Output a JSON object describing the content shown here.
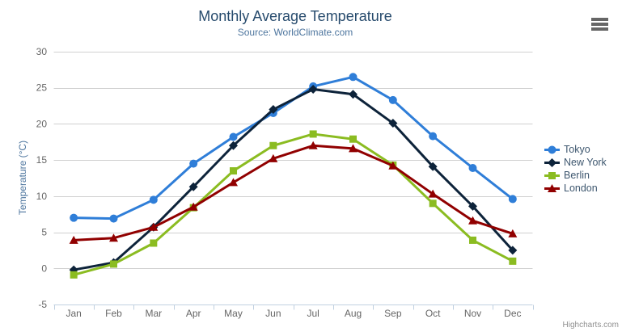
{
  "chart_data": {
    "type": "line",
    "title": "Monthly Average Temperature",
    "subtitle": "Source: WorldClimate.com",
    "xlabel": "",
    "ylabel": "Temperature (°C)",
    "categories": [
      "Jan",
      "Feb",
      "Mar",
      "Apr",
      "May",
      "Jun",
      "Jul",
      "Aug",
      "Sep",
      "Oct",
      "Nov",
      "Dec"
    ],
    "series": [
      {
        "name": "Tokyo",
        "color": "#2f7ed8",
        "marker": "circle",
        "values": [
          7.0,
          6.9,
          9.5,
          14.5,
          18.2,
          21.5,
          25.2,
          26.5,
          23.3,
          18.3,
          13.9,
          9.6
        ]
      },
      {
        "name": "New York",
        "color": "#0d233a",
        "marker": "diamond",
        "values": [
          -0.2,
          0.8,
          5.7,
          11.3,
          17.0,
          22.0,
          24.8,
          24.1,
          20.1,
          14.1,
          8.6,
          2.5
        ]
      },
      {
        "name": "Berlin",
        "color": "#8bbc21",
        "marker": "square",
        "values": [
          -0.9,
          0.6,
          3.5,
          8.4,
          13.5,
          17.0,
          18.6,
          17.9,
          14.3,
          9.0,
          3.9,
          1.0
        ]
      },
      {
        "name": "London",
        "color": "#910000",
        "marker": "triangle",
        "values": [
          3.9,
          4.2,
          5.7,
          8.5,
          11.9,
          15.2,
          17.0,
          16.6,
          14.2,
          10.3,
          6.6,
          4.8
        ]
      }
    ],
    "ylim": [
      -5,
      30
    ],
    "yticks": [
      -5,
      0,
      5,
      10,
      15,
      20,
      25,
      30
    ],
    "grid": true,
    "legend_position": "right"
  },
  "colors": {
    "title": "#274b6d",
    "subtitle": "#4d759e",
    "axis_title": "#4d759e",
    "axis_labels": "#666666",
    "grid_line": "#d0d0d0",
    "axis_line": "#c0d0e0",
    "legend_text": "#3e576f",
    "credits": "#909090",
    "menu_icon": "#666666"
  },
  "credits": {
    "label": "Highcharts.com"
  },
  "context_menu": {
    "icon": "hamburger-icon"
  }
}
